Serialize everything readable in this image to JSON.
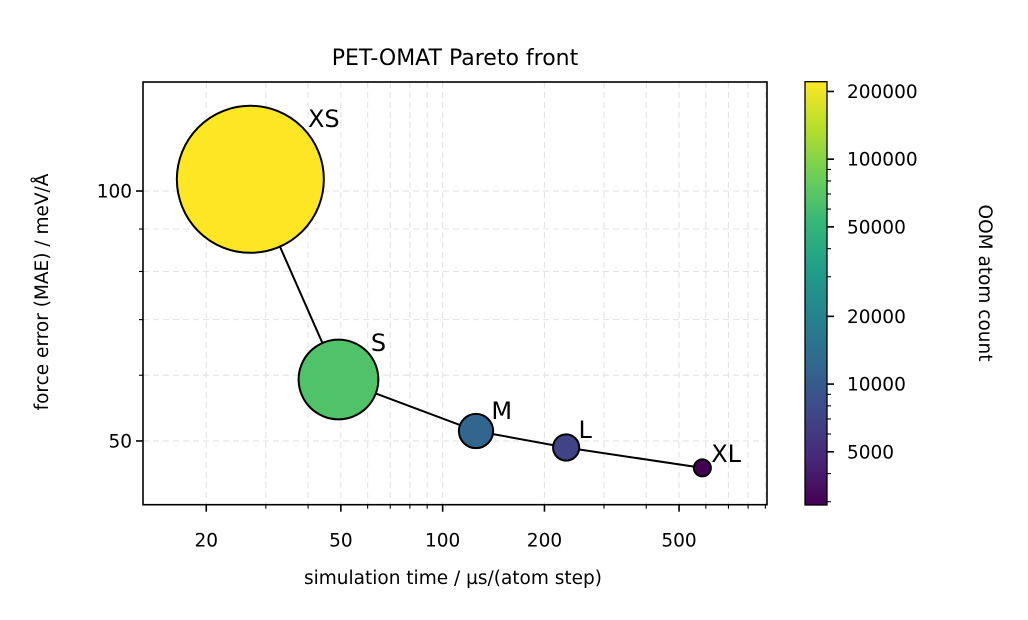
{
  "chart_data": {
    "type": "scatter",
    "title": "PET-OMAT Pareto front",
    "xlabel": "simulation time / µs/(atom step)",
    "ylabel": "force error (MAE) / meV/Å",
    "xscale": "log",
    "yscale": "log",
    "xlim": [
      13.0,
      910
    ],
    "ylim": [
      41.9,
      135.3
    ],
    "grid": true,
    "grid_style": "dashed, major and minor",
    "connect_points": true,
    "x_major_ticks": [
      20,
      50,
      100,
      200,
      500
    ],
    "x_tick_labels": [
      "20",
      "50",
      "100",
      "200",
      "500"
    ],
    "x_minor_ticks": [
      20,
      30,
      40,
      50,
      60,
      70,
      80,
      90,
      100,
      200,
      300,
      400,
      500,
      600,
      700,
      800,
      900
    ],
    "y_major_ticks": [
      50,
      100
    ],
    "y_tick_labels": [
      "50",
      "100"
    ],
    "y_minor_ticks": [
      50,
      60,
      70,
      80,
      90,
      100
    ],
    "points": [
      {
        "label": "XS",
        "x": 27.0,
        "y": 103.3,
        "oom_atom_count": 221000
      },
      {
        "label": "S",
        "x": 49.2,
        "y": 59.3,
        "oom_atom_count": 65000
      },
      {
        "label": "M",
        "x": 125.5,
        "y": 51.4,
        "oom_atom_count": 12000
      },
      {
        "label": "L",
        "x": 231.8,
        "y": 49.1,
        "oom_atom_count": 7000
      },
      {
        "label": "XL",
        "x": 586.0,
        "y": 46.4,
        "oom_atom_count": 2900
      }
    ],
    "marker_size_encodes": "oom_atom_count",
    "colorbar": {
      "label": "OOM atom count",
      "colormap": "viridis",
      "scale": "log",
      "range": [
        2900,
        221000
      ],
      "major_ticks": [
        5000,
        10000,
        20000,
        50000,
        100000,
        200000
      ],
      "tick_labels": [
        "5000",
        "10000",
        "20000",
        "50000",
        "100000",
        "200000"
      ],
      "minor_ticks": [
        3000,
        4000,
        5000,
        6000,
        7000,
        8000,
        9000,
        10000,
        20000,
        30000,
        40000,
        50000,
        60000,
        70000,
        80000,
        90000,
        100000,
        200000
      ],
      "placement": "right"
    },
    "colors": {
      "viridis_stops": [
        "#440154",
        "#482878",
        "#3e4989",
        "#31688e",
        "#26828e",
        "#1f9e89",
        "#35b779",
        "#6ece58",
        "#b5de2b",
        "#fde725"
      ]
    }
  }
}
